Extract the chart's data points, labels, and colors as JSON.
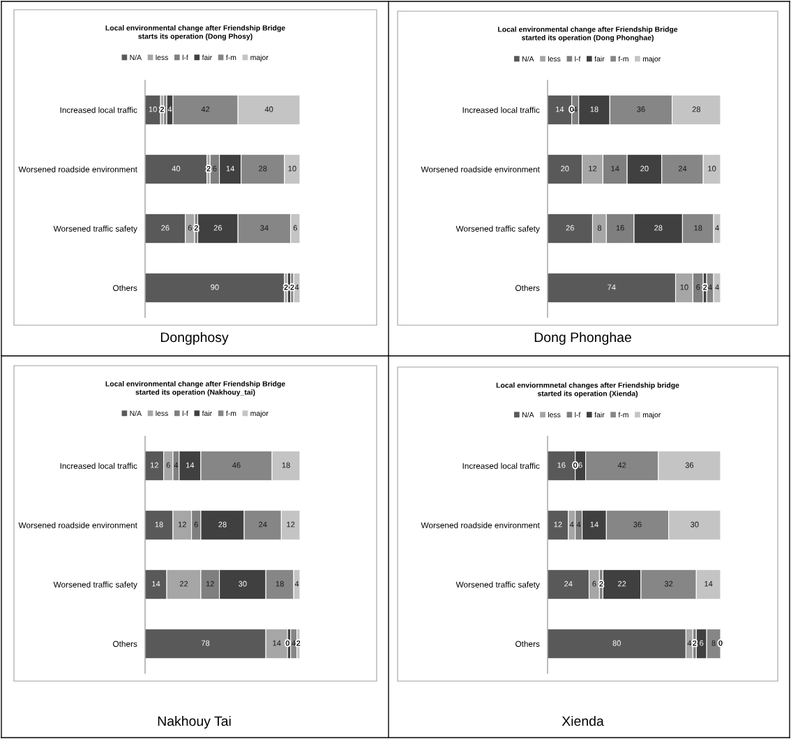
{
  "chart_data": [
    {
      "type": "bar",
      "orientation": "horizontal",
      "stacked": true,
      "data_labels": true,
      "legend": "top",
      "tick_labels": "y",
      "grid": false,
      "xlim": [
        0,
        100
      ],
      "title": "Local environmental change after Friendship Bridge starts its operation (Dong Phosy)",
      "annotations": [
        "Dongphosy"
      ],
      "categories": [
        "Increased local traffic",
        "Worsened roadside environment",
        "Worsened traffic safety",
        "Others"
      ],
      "series": [
        {
          "name": "N/A",
          "color": "#595959",
          "values": [
            10,
            40,
            26,
            90
          ]
        },
        {
          "name": "less",
          "color": "#a6a6a6",
          "values": [
            2,
            2,
            6,
            2
          ]
        },
        {
          "name": "l-f",
          "color": "#7f7f7f",
          "values": [
            2,
            6,
            2,
            null
          ],
          "value_labels": [
            null,
            "6",
            "2",
            null
          ]
        },
        {
          "name": "fair",
          "color": "#404040",
          "values": [
            4,
            14,
            26,
            2
          ],
          "value_labels": [
            "4",
            "14",
            "26",
            null
          ]
        },
        {
          "name": "f-m",
          "color": "#868686",
          "values": [
            42,
            28,
            34,
            2
          ]
        },
        {
          "name": "major",
          "color": "#c4c4c4",
          "values": [
            40,
            10,
            6,
            4
          ]
        }
      ]
    },
    {
      "type": "bar",
      "orientation": "horizontal",
      "stacked": true,
      "data_labels": true,
      "legend": "top",
      "tick_labels": "y",
      "grid": false,
      "xlim": [
        0,
        100
      ],
      "title": "Local environmental change after Friendship Bridge started its operation (Dong Phonghae)",
      "annotations": [
        "Dong Phonghae"
      ],
      "categories": [
        "Increased local traffic",
        "Worsened roadside environment",
        "Worsened traffic safety",
        "Others"
      ],
      "series": [
        {
          "name": "N/A",
          "color": "#595959",
          "values": [
            14,
            20,
            26,
            74
          ]
        },
        {
          "name": "less",
          "color": "#a6a6a6",
          "values": [
            0,
            12,
            8,
            10
          ]
        },
        {
          "name": "l-f",
          "color": "#7f7f7f",
          "values": [
            4,
            14,
            16,
            6
          ]
        },
        {
          "name": "fair",
          "color": "#404040",
          "values": [
            18,
            20,
            28,
            2
          ]
        },
        {
          "name": "f-m",
          "color": "#868686",
          "values": [
            36,
            24,
            18,
            4
          ]
        },
        {
          "name": "major",
          "color": "#c4c4c4",
          "values": [
            28,
            10,
            4,
            4
          ]
        }
      ]
    },
    {
      "type": "bar",
      "orientation": "horizontal",
      "stacked": true,
      "data_labels": true,
      "legend": "top",
      "tick_labels": "y",
      "grid": false,
      "xlim": [
        0,
        100
      ],
      "title": "Local environmental change after Friendship Bridge started its operation (Nakhouy_tai)",
      "annotations": [
        "Nakhouy Tai"
      ],
      "categories": [
        "Increased local traffic",
        "Worsened roadside environment",
        "Worsened traffic safety",
        "Others"
      ],
      "series": [
        {
          "name": "N/A",
          "color": "#595959",
          "values": [
            12,
            18,
            14,
            78
          ]
        },
        {
          "name": "less",
          "color": "#a6a6a6",
          "values": [
            6,
            12,
            22,
            14
          ]
        },
        {
          "name": "l-f",
          "color": "#7f7f7f",
          "values": [
            4,
            6,
            12,
            0
          ]
        },
        {
          "name": "fair",
          "color": "#404040",
          "values": [
            14,
            28,
            30,
            2
          ],
          "value_labels": [
            "14",
            "28",
            "30",
            null
          ]
        },
        {
          "name": "f-m",
          "color": "#868686",
          "values": [
            46,
            24,
            18,
            4
          ]
        },
        {
          "name": "major",
          "color": "#c4c4c4",
          "values": [
            18,
            12,
            4,
            2
          ]
        }
      ]
    },
    {
      "type": "bar",
      "orientation": "horizontal",
      "stacked": true,
      "data_labels": true,
      "legend": "top",
      "tick_labels": "y",
      "grid": false,
      "xlim": [
        0,
        100
      ],
      "title": "Local enviornmnetal changes after Friendship bridge started its operation (Xienda)",
      "annotations": [
        "Xienda"
      ],
      "categories": [
        "Increased local traffic",
        "Worsened roadside environment",
        "Worsened traffic safety",
        "Others"
      ],
      "series": [
        {
          "name": "N/A",
          "color": "#595959",
          "values": [
            16,
            12,
            24,
            80
          ]
        },
        {
          "name": "less",
          "color": "#a6a6a6",
          "values": [
            0,
            4,
            6,
            4
          ]
        },
        {
          "name": "l-f",
          "color": "#7f7f7f",
          "values": [
            null,
            4,
            2,
            2
          ]
        },
        {
          "name": "fair",
          "color": "#404040",
          "values": [
            6,
            14,
            22,
            6
          ]
        },
        {
          "name": "f-m",
          "color": "#868686",
          "values": [
            42,
            36,
            32,
            8
          ]
        },
        {
          "name": "major",
          "color": "#c4c4c4",
          "values": [
            36,
            30,
            14,
            0
          ]
        }
      ]
    }
  ]
}
